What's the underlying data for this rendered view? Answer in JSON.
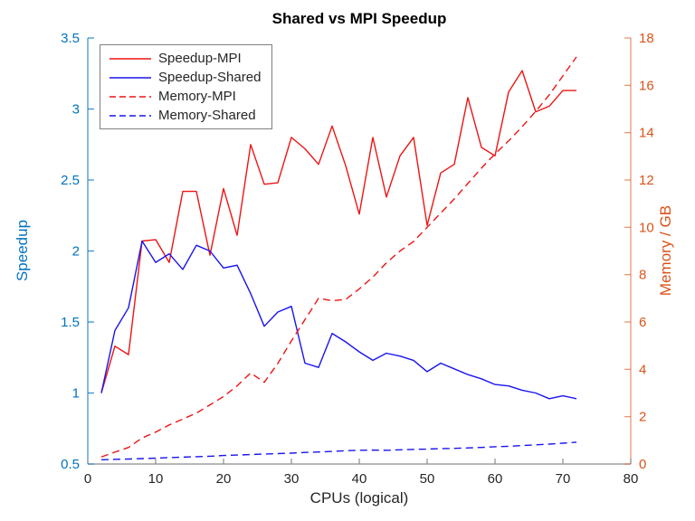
{
  "chart_data": {
    "type": "line",
    "title": "Shared vs MPI Speedup",
    "xlabel": "CPUs (logical)",
    "ylabel_left": "Speedup",
    "ylabel_right": "Memory / GB",
    "xlim": [
      0,
      80
    ],
    "ylim_left": [
      0.5,
      3.5
    ],
    "ylim_right": [
      0,
      18
    ],
    "x_ticks": [
      0,
      10,
      20,
      30,
      40,
      50,
      60,
      70,
      80
    ],
    "y_left_ticks": [
      0.5,
      1,
      1.5,
      2,
      2.5,
      3,
      3.5
    ],
    "y_right_ticks": [
      0,
      2,
      4,
      6,
      8,
      10,
      12,
      14,
      16,
      18
    ],
    "grid": false,
    "legend_position": "top-left",
    "x": [
      2,
      4,
      6,
      8,
      10,
      12,
      14,
      16,
      18,
      20,
      22,
      24,
      26,
      28,
      30,
      32,
      34,
      36,
      38,
      40,
      42,
      44,
      46,
      48,
      50,
      52,
      54,
      56,
      58,
      60,
      62,
      64,
      66,
      68,
      70,
      72
    ],
    "series": [
      {
        "name": "Speedup-MPI",
        "axis": "left",
        "style": "solid",
        "color": "#ee1414",
        "values": [
          1.0,
          1.33,
          1.27,
          2.07,
          2.08,
          1.92,
          2.42,
          2.42,
          1.97,
          2.44,
          2.11,
          2.75,
          2.47,
          2.48,
          2.8,
          2.72,
          2.61,
          2.88,
          2.6,
          2.26,
          2.8,
          2.38,
          2.67,
          2.8,
          2.18,
          2.55,
          2.61,
          3.08,
          2.73,
          2.67,
          3.12,
          3.27,
          2.98,
          3.02,
          3.13,
          3.13
        ]
      },
      {
        "name": "Speedup-Shared",
        "axis": "left",
        "style": "solid",
        "color": "#1a14ee",
        "values": [
          1.0,
          1.44,
          1.6,
          2.07,
          1.92,
          1.98,
          1.87,
          2.04,
          2.0,
          1.88,
          1.9,
          1.7,
          1.47,
          1.57,
          1.61,
          1.21,
          1.18,
          1.42,
          1.36,
          1.29,
          1.23,
          1.28,
          1.26,
          1.23,
          1.15,
          1.21,
          1.17,
          1.13,
          1.1,
          1.06,
          1.05,
          1.02,
          1.0,
          0.96,
          0.98,
          0.96
        ]
      },
      {
        "name": "Memory-MPI",
        "axis": "right",
        "style": "dashed",
        "color": "#ee1414",
        "values": [
          0.3,
          0.5,
          0.7,
          1.1,
          1.35,
          1.65,
          1.9,
          2.15,
          2.5,
          2.85,
          3.3,
          3.85,
          3.45,
          4.25,
          5.2,
          6.1,
          7.0,
          6.9,
          6.95,
          7.4,
          7.9,
          8.5,
          9.0,
          9.4,
          10.0,
          10.6,
          11.2,
          11.85,
          12.5,
          13.1,
          13.65,
          14.25,
          14.9,
          15.6,
          16.4,
          17.2
        ]
      },
      {
        "name": "Memory-Shared",
        "axis": "right",
        "style": "dashed",
        "color": "#1a14ee",
        "values": [
          0.18,
          0.2,
          0.21,
          0.23,
          0.25,
          0.27,
          0.29,
          0.31,
          0.33,
          0.36,
          0.38,
          0.4,
          0.42,
          0.44,
          0.46,
          0.49,
          0.51,
          0.53,
          0.56,
          0.58,
          0.59,
          0.58,
          0.6,
          0.62,
          0.63,
          0.65,
          0.66,
          0.68,
          0.7,
          0.73,
          0.75,
          0.78,
          0.81,
          0.84,
          0.88,
          0.92
        ]
      }
    ],
    "colors": {
      "left_axis": "#0072BD",
      "right_axis": "#D95319",
      "x_axis": "#8c8c8c",
      "x_tick_label": "#262626",
      "title": "#000000",
      "legend_border": "#7f7f7f"
    }
  }
}
